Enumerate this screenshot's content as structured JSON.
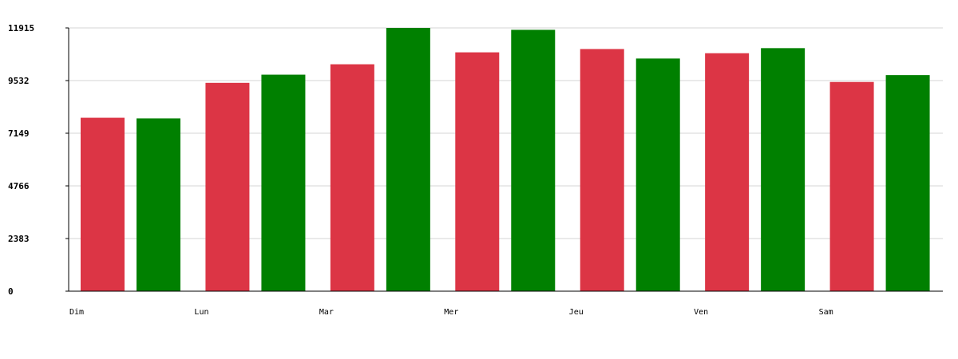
{
  "chart_data": {
    "type": "bar",
    "categories": [
      "Dim",
      "Lun",
      "Mar",
      "Mer",
      "Jeu",
      "Ven",
      "Sam"
    ],
    "series": [
      {
        "color": "#dc3545",
        "values": [
          7850,
          9430,
          10270,
          10810,
          10960,
          10770,
          9470
        ]
      },
      {
        "color": "#008000",
        "values": [
          7820,
          9800,
          11915,
          11830,
          10530,
          11000,
          9780
        ]
      }
    ],
    "y_ticks": [
      "0",
      "2383",
      "4766",
      "7149",
      "9532",
      "11915"
    ],
    "ylim": [
      0,
      11915
    ],
    "grid": true,
    "legend": "none"
  }
}
